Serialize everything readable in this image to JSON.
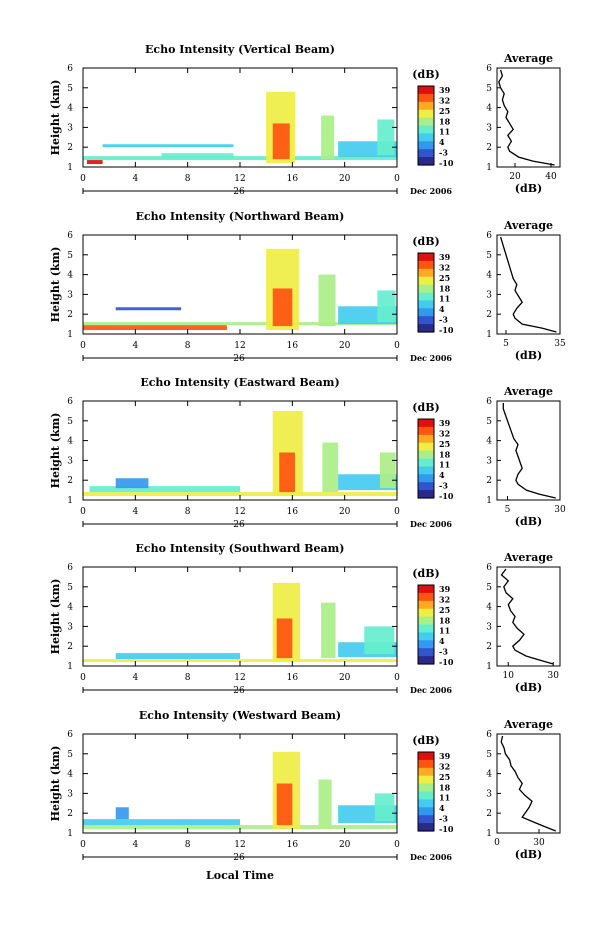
{
  "figure": {
    "time_axis_label": "Local Time",
    "date_label": "Dec 2006",
    "day_label": "26",
    "x_ticks": [
      "0",
      "4",
      "8",
      "12",
      "16",
      "20",
      "0"
    ],
    "y_ticks": [
      "1",
      "2",
      "3",
      "4",
      "5",
      "6"
    ],
    "colorbar_unit": "(dB)",
    "colorbar_ticks": [
      "39",
      "32",
      "25",
      "18",
      "11",
      "4",
      "-3",
      "-10"
    ],
    "colorbar_colors": [
      "#2a2a8a",
      "#3355cc",
      "#3399ee",
      "#44ccee",
      "#66eecc",
      "#aaee88",
      "#eeee44",
      "#ffaa22",
      "#ff5511",
      "#dd1111"
    ]
  },
  "chart_data": [
    {
      "type": "heatmap",
      "title": "Echo Intensity (Vertical Beam)",
      "ylabel": "Height (km)",
      "xlabel": "",
      "xlim": [
        0,
        24
      ],
      "ylim": [
        1,
        6
      ],
      "zlim": [
        -10,
        39
      ],
      "features": [
        {
          "t0": 0.0,
          "t1": 24.0,
          "h0": 1.35,
          "h1": 1.55,
          "v": 14
        },
        {
          "t0": 0.3,
          "t1": 1.5,
          "h0": 1.15,
          "h1": 1.35,
          "v": 36
        },
        {
          "t0": 1.5,
          "t1": 11.5,
          "h0": 2.0,
          "h1": 2.15,
          "v": 6
        },
        {
          "t0": 6.0,
          "t1": 11.5,
          "h0": 1.45,
          "h1": 1.7,
          "v": 12
        },
        {
          "t0": 14.0,
          "t1": 16.2,
          "h0": 1.2,
          "h1": 4.8,
          "v": 22
        },
        {
          "t0": 14.5,
          "t1": 15.8,
          "h0": 1.4,
          "h1": 3.2,
          "v": 32
        },
        {
          "t0": 18.2,
          "t1": 19.2,
          "h0": 1.4,
          "h1": 3.6,
          "v": 16
        },
        {
          "t0": 19.5,
          "t1": 24.0,
          "h0": 1.5,
          "h1": 2.3,
          "v": 8
        },
        {
          "t0": 22.5,
          "t1": 23.8,
          "h0": 1.6,
          "h1": 3.4,
          "v": 14
        }
      ],
      "profile": {
        "xlabel": "(dB)",
        "title": "Average",
        "xlim": [
          10,
          45
        ],
        "xticks": [
          "20",
          "40"
        ],
        "height_km": [
          1.1,
          1.3,
          1.5,
          1.8,
          2.0,
          2.3,
          2.6,
          2.9,
          3.2,
          3.5,
          3.8,
          4.1,
          4.4,
          4.7,
          5.0,
          5.3,
          5.6,
          5.9
        ],
        "value_db": [
          42,
          30,
          22,
          17,
          16,
          18,
          16,
          19,
          17,
          15,
          16,
          14,
          13,
          14,
          12,
          11,
          13,
          12
        ]
      }
    },
    {
      "type": "heatmap",
      "title": "Echo Intensity (Northward Beam)",
      "ylabel": "Height (km)",
      "xlabel": "",
      "xlim": [
        0,
        24
      ],
      "ylim": [
        1,
        6
      ],
      "zlim": [
        -10,
        39
      ],
      "features": [
        {
          "t0": 0.0,
          "t1": 11.0,
          "h0": 1.2,
          "h1": 1.45,
          "v": 30
        },
        {
          "t0": 0.0,
          "t1": 24.0,
          "h0": 1.45,
          "h1": 1.6,
          "v": 16
        },
        {
          "t0": 2.5,
          "t1": 7.5,
          "h0": 2.2,
          "h1": 2.35,
          "v": -2
        },
        {
          "t0": 14.0,
          "t1": 16.5,
          "h0": 1.2,
          "h1": 5.3,
          "v": 22
        },
        {
          "t0": 14.5,
          "t1": 16.0,
          "h0": 1.4,
          "h1": 3.3,
          "v": 32
        },
        {
          "t0": 18.0,
          "t1": 19.3,
          "h0": 1.4,
          "h1": 4.0,
          "v": 18
        },
        {
          "t0": 19.5,
          "t1": 24.0,
          "h0": 1.5,
          "h1": 2.4,
          "v": 6
        },
        {
          "t0": 22.5,
          "t1": 23.9,
          "h0": 1.6,
          "h1": 3.2,
          "v": 14
        }
      ],
      "profile": {
        "xlabel": "(dB)",
        "title": "Average",
        "xlim": [
          0,
          35
        ],
        "xticks": [
          "5",
          "35"
        ],
        "height_km": [
          1.1,
          1.3,
          1.5,
          1.8,
          2.0,
          2.3,
          2.6,
          2.9,
          3.2,
          3.5,
          3.8,
          4.1,
          4.4,
          4.7,
          5.0,
          5.3,
          5.6,
          5.9
        ],
        "value_db": [
          33,
          25,
          14,
          10,
          9,
          11,
          14,
          12,
          10,
          11,
          9,
          8,
          7,
          6,
          5,
          4,
          3,
          2
        ]
      }
    },
    {
      "type": "heatmap",
      "title": "Echo Intensity (Eastward Beam)",
      "ylabel": "Height (km)",
      "xlabel": "",
      "xlim": [
        0,
        24
      ],
      "ylim": [
        1,
        6
      ],
      "zlim": [
        -10,
        39
      ],
      "features": [
        {
          "t0": 0.0,
          "t1": 24.0,
          "h0": 1.2,
          "h1": 1.4,
          "v": 24
        },
        {
          "t0": 0.5,
          "t1": 12.0,
          "h0": 1.4,
          "h1": 1.7,
          "v": 10
        },
        {
          "t0": 2.5,
          "t1": 5.0,
          "h0": 1.6,
          "h1": 2.1,
          "v": 4
        },
        {
          "t0": 14.5,
          "t1": 16.8,
          "h0": 1.2,
          "h1": 5.5,
          "v": 22
        },
        {
          "t0": 15.0,
          "t1": 16.2,
          "h0": 1.4,
          "h1": 3.4,
          "v": 33
        },
        {
          "t0": 18.3,
          "t1": 19.5,
          "h0": 1.4,
          "h1": 3.9,
          "v": 18
        },
        {
          "t0": 19.5,
          "t1": 24.0,
          "h0": 1.5,
          "h1": 2.3,
          "v": 8
        },
        {
          "t0": 22.7,
          "t1": 23.9,
          "h0": 1.6,
          "h1": 3.4,
          "v": 16
        }
      ],
      "profile": {
        "xlabel": "(dB)",
        "title": "Average",
        "xlim": [
          0,
          30
        ],
        "xticks": [
          "5",
          "30"
        ],
        "height_km": [
          1.1,
          1.3,
          1.5,
          1.8,
          2.0,
          2.3,
          2.6,
          2.9,
          3.2,
          3.5,
          3.8,
          4.1,
          4.4,
          4.7,
          5.0,
          5.3,
          5.6,
          5.9
        ],
        "value_db": [
          28,
          20,
          14,
          10,
          9,
          10,
          12,
          11,
          10,
          9,
          10,
          8,
          7,
          6,
          5,
          4,
          3,
          3
        ]
      }
    },
    {
      "type": "heatmap",
      "title": "Echo Intensity (Southward Beam)",
      "ylabel": "Height (km)",
      "xlabel": "",
      "xlim": [
        0,
        24
      ],
      "ylim": [
        1,
        6
      ],
      "zlim": [
        -10,
        39
      ],
      "features": [
        {
          "t0": 0.0,
          "t1": 24.0,
          "h0": 1.2,
          "h1": 1.35,
          "v": 20
        },
        {
          "t0": 2.5,
          "t1": 12.0,
          "h0": 1.35,
          "h1": 1.65,
          "v": 6
        },
        {
          "t0": 14.5,
          "t1": 16.6,
          "h0": 1.2,
          "h1": 5.2,
          "v": 22
        },
        {
          "t0": 14.8,
          "t1": 16.0,
          "h0": 1.4,
          "h1": 3.4,
          "v": 33
        },
        {
          "t0": 18.2,
          "t1": 19.3,
          "h0": 1.4,
          "h1": 4.2,
          "v": 18
        },
        {
          "t0": 19.5,
          "t1": 24.0,
          "h0": 1.45,
          "h1": 2.2,
          "v": 6
        },
        {
          "t0": 21.5,
          "t1": 23.8,
          "h0": 1.6,
          "h1": 3.0,
          "v": 14
        }
      ],
      "profile": {
        "xlabel": "(dB)",
        "title": "Average",
        "xlim": [
          5,
          33
        ],
        "xticks": [
          "10",
          "30"
        ],
        "height_km": [
          1.1,
          1.3,
          1.5,
          1.8,
          2.0,
          2.3,
          2.6,
          2.9,
          3.2,
          3.5,
          3.8,
          4.1,
          4.4,
          4.7,
          5.0,
          5.3,
          5.6,
          5.9
        ],
        "value_db": [
          30,
          24,
          18,
          13,
          12,
          15,
          17,
          14,
          12,
          13,
          11,
          10,
          12,
          9,
          8,
          10,
          7,
          9
        ]
      }
    },
    {
      "type": "heatmap",
      "title": "Echo Intensity (Westward Beam)",
      "ylabel": "Height (km)",
      "xlabel": "Local Time",
      "xlim": [
        0,
        24
      ],
      "ylim": [
        1,
        6
      ],
      "zlim": [
        -10,
        39
      ],
      "features": [
        {
          "t0": 0.0,
          "t1": 24.0,
          "h0": 1.2,
          "h1": 1.4,
          "v": 18
        },
        {
          "t0": 0.0,
          "t1": 12.0,
          "h0": 1.4,
          "h1": 1.7,
          "v": 8
        },
        {
          "t0": 2.5,
          "t1": 3.5,
          "h0": 1.7,
          "h1": 2.3,
          "v": 2
        },
        {
          "t0": 14.5,
          "t1": 16.6,
          "h0": 1.2,
          "h1": 5.1,
          "v": 22
        },
        {
          "t0": 14.8,
          "t1": 16.0,
          "h0": 1.4,
          "h1": 3.5,
          "v": 33
        },
        {
          "t0": 18.0,
          "t1": 19.0,
          "h0": 1.4,
          "h1": 3.7,
          "v": 16
        },
        {
          "t0": 19.5,
          "t1": 24.0,
          "h0": 1.5,
          "h1": 2.4,
          "v": 6
        },
        {
          "t0": 22.3,
          "t1": 23.8,
          "h0": 1.6,
          "h1": 3.0,
          "v": 12
        }
      ],
      "profile": {
        "xlabel": "(dB)",
        "title": "Average",
        "xlim": [
          0,
          45
        ],
        "xticks": [
          "0",
          "30"
        ],
        "height_km": [
          1.1,
          1.3,
          1.5,
          1.8,
          2.0,
          2.3,
          2.6,
          2.9,
          3.2,
          3.5,
          3.8,
          4.1,
          4.4,
          4.7,
          5.0,
          5.3,
          5.6,
          5.9
        ],
        "value_db": [
          42,
          35,
          28,
          18,
          20,
          23,
          25,
          20,
          16,
          18,
          15,
          13,
          10,
          9,
          6,
          5,
          3,
          4
        ]
      }
    }
  ]
}
